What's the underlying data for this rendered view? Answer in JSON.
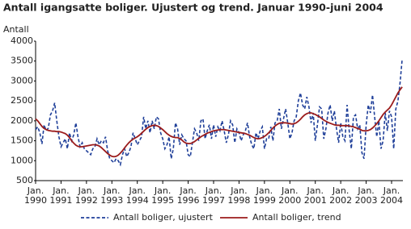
{
  "chart_data": {
    "type": "line",
    "title": "Antall igangsatte boliger. Ujustert og trend. Januar 1990-juni 2004",
    "y_label": "Antall",
    "x_month_label": "Jan.",
    "categories": [
      "1990",
      null,
      null,
      null,
      null,
      null,
      null,
      null,
      null,
      null,
      null,
      null,
      "1991",
      null,
      null,
      null,
      null,
      null,
      null,
      null,
      null,
      null,
      null,
      null,
      "1992",
      null,
      null,
      null,
      null,
      null,
      null,
      null,
      null,
      null,
      null,
      null,
      "1993",
      null,
      null,
      null,
      null,
      null,
      null,
      null,
      null,
      null,
      null,
      null,
      "1994",
      null,
      null,
      null,
      null,
      null,
      null,
      null,
      null,
      null,
      null,
      null,
      "1995",
      null,
      null,
      null,
      null,
      null,
      null,
      null,
      null,
      null,
      null,
      null,
      "1996",
      null,
      null,
      null,
      null,
      null,
      null,
      null,
      null,
      null,
      null,
      null,
      "1997",
      null,
      null,
      null,
      null,
      null,
      null,
      null,
      null,
      null,
      null,
      null,
      "1998",
      null,
      null,
      null,
      null,
      null,
      null,
      null,
      null,
      null,
      null,
      null,
      "1999",
      null,
      null,
      null,
      null,
      null,
      null,
      null,
      null,
      null,
      null,
      null,
      "2000",
      null,
      null,
      null,
      null,
      null,
      null,
      null,
      null,
      null,
      null,
      null,
      "2001",
      null,
      null,
      null,
      null,
      null,
      null,
      null,
      null,
      null,
      null,
      null,
      "2002",
      null,
      null,
      null,
      null,
      null,
      null,
      null,
      null,
      null,
      null,
      null,
      "2003",
      null,
      null,
      null,
      null,
      null,
      null,
      null,
      null,
      null,
      null,
      null,
      "2004",
      null,
      null,
      null,
      null,
      null
    ],
    "series": [
      {
        "name": "Antall boliger, ujustert",
        "color": "#1f3f99",
        "dashed": true,
        "values": [
          1780,
          1850,
          1700,
          1420,
          1900,
          1750,
          1820,
          2150,
          2250,
          2450,
          2000,
          1600,
          1350,
          1450,
          1550,
          1300,
          1700,
          1500,
          1650,
          1950,
          1600,
          1350,
          1450,
          1300,
          1250,
          1200,
          1150,
          1300,
          1350,
          1550,
          1400,
          1500,
          1450,
          1600,
          1250,
          1050,
          1000,
          950,
          1050,
          1000,
          900,
          1150,
          1300,
          1100,
          1200,
          1350,
          1700,
          1550,
          1400,
          1500,
          1600,
          2100,
          1800,
          2000,
          1700,
          2000,
          1800,
          2100,
          2050,
          1700,
          1550,
          1300,
          1400,
          1600,
          1050,
          1300,
          1950,
          1800,
          1400,
          1650,
          1550,
          1500,
          1150,
          1100,
          1450,
          1800,
          1700,
          1500,
          2000,
          2050,
          1550,
          1750,
          1900,
          1550,
          1900,
          1600,
          1850,
          1750,
          2000,
          1750,
          1450,
          1650,
          2000,
          1900,
          1450,
          1800,
          1700,
          1500,
          1650,
          1750,
          1950,
          1600,
          1400,
          1300,
          1700,
          1550,
          1750,
          1850,
          1300,
          1550,
          1550,
          1850,
          1500,
          1950,
          2000,
          2300,
          1800,
          2050,
          2300,
          1950,
          1550,
          1700,
          2000,
          2100,
          2500,
          2700,
          2400,
          2300,
          2600,
          2350,
          1950,
          2200,
          1500,
          1900,
          2350,
          2300,
          1550,
          1800,
          2200,
          2400,
          2000,
          2250,
          1800,
          1450,
          1950,
          1600,
          1500,
          2400,
          1750,
          1300,
          2100,
          2150,
          1800,
          1900,
          1200,
          1050,
          1900,
          2400,
          2200,
          2650,
          2100,
          1600,
          2000,
          1300,
          1500,
          2200,
          1750,
          2250,
          2100,
          1300,
          2300,
          2500,
          2950,
          3550
        ]
      },
      {
        "name": "Antall boliger, trend",
        "color": "#9b1c1c",
        "dashed": false,
        "values": [
          2050,
          2000,
          1930,
          1860,
          1810,
          1780,
          1760,
          1750,
          1740,
          1740,
          1730,
          1730,
          1720,
          1700,
          1680,
          1640,
          1580,
          1500,
          1440,
          1390,
          1360,
          1350,
          1350,
          1360,
          1370,
          1380,
          1390,
          1400,
          1400,
          1390,
          1370,
          1330,
          1280,
          1230,
          1180,
          1140,
          1110,
          1100,
          1110,
          1140,
          1190,
          1250,
          1320,
          1390,
          1450,
          1500,
          1540,
          1570,
          1600,
          1640,
          1690,
          1740,
          1790,
          1830,
          1860,
          1880,
          1890,
          1880,
          1860,
          1820,
          1780,
          1730,
          1680,
          1640,
          1610,
          1590,
          1580,
          1580,
          1560,
          1520,
          1470,
          1440,
          1430,
          1430,
          1450,
          1480,
          1520,
          1560,
          1600,
          1630,
          1660,
          1690,
          1710,
          1730,
          1750,
          1760,
          1770,
          1780,
          1780,
          1780,
          1770,
          1760,
          1750,
          1740,
          1730,
          1720,
          1710,
          1700,
          1690,
          1680,
          1660,
          1640,
          1610,
          1580,
          1560,
          1550,
          1560,
          1580,
          1610,
          1650,
          1700,
          1760,
          1820,
          1870,
          1910,
          1940,
          1950,
          1950,
          1950,
          1940,
          1930,
          1920,
          1930,
          1950,
          1990,
          2040,
          2100,
          2150,
          2180,
          2200,
          2200,
          2180,
          2160,
          2130,
          2100,
          2060,
          2020,
          1990,
          1960,
          1940,
          1920,
          1900,
          1890,
          1890,
          1880,
          1880,
          1880,
          1880,
          1870,
          1860,
          1850,
          1830,
          1810,
          1790,
          1760,
          1750,
          1750,
          1760,
          1780,
          1820,
          1870,
          1930,
          2000,
          2080,
          2160,
          2220,
          2270,
          2320,
          2400,
          2500,
          2600,
          2700,
          2780,
          2850
        ]
      }
    ],
    "ylim": [
      500,
      4000
    ],
    "yticks": [
      500,
      1000,
      1500,
      2000,
      2500,
      3000,
      3500,
      4000
    ],
    "grid": false
  }
}
